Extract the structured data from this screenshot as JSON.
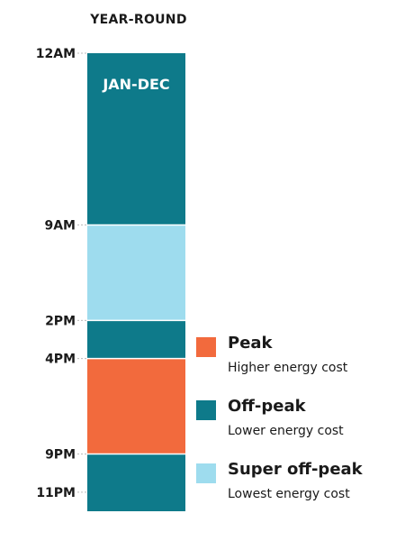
{
  "chart_data": {
    "type": "bar",
    "title": "YEAR-ROUND",
    "bar_label": "JAN-DEC",
    "tick_labels": [
      "12AM",
      "9AM",
      "2PM",
      "4PM",
      "9PM",
      "11PM"
    ],
    "segments": [
      {
        "label": "12AM-9AM",
        "start_hour": 0,
        "end_hour": 9,
        "category": "off-peak"
      },
      {
        "label": "9AM-2PM",
        "start_hour": 9,
        "end_hour": 14,
        "category": "super-off-peak"
      },
      {
        "label": "2PM-4PM",
        "start_hour": 14,
        "end_hour": 16,
        "category": "off-peak"
      },
      {
        "label": "4PM-9PM",
        "start_hour": 16,
        "end_hour": 21,
        "category": "peak"
      },
      {
        "label": "9PM-12AM",
        "start_hour": 21,
        "end_hour": 24,
        "category": "off-peak"
      }
    ],
    "ticks_hours": [
      0,
      9,
      14,
      16,
      21,
      23
    ],
    "ylim": [
      0,
      24
    ],
    "legend_placement": "right",
    "grid": false
  },
  "legend": [
    {
      "key": "peak",
      "name": "Peak",
      "desc": "Higher energy cost",
      "color": "#f26a3d"
    },
    {
      "key": "off-peak",
      "name": "Off-peak",
      "desc": "Lower energy cost",
      "color": "#0e7a8a"
    },
    {
      "key": "super-off-peak",
      "name": "Super off-peak",
      "desc": "Lowest energy cost",
      "color": "#9edcee"
    }
  ],
  "colors": {
    "peak": "#f26a3d",
    "off-peak": "#0e7a8a",
    "super-off-peak": "#9edcee",
    "divider": "#ffffff",
    "tick_line": "#bbbbbb"
  }
}
